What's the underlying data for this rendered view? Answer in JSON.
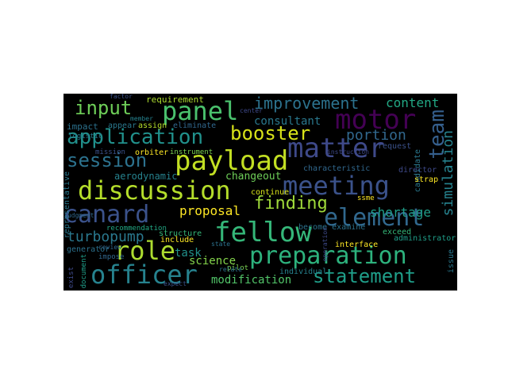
{
  "cloud": {
    "background": "#000000",
    "words": [
      {
        "text": "fellow",
        "color": "#35b779"
      },
      {
        "text": "discussion",
        "color": "#b5de2b"
      },
      {
        "text": "payload",
        "color": "#c2df23"
      },
      {
        "text": "preparation",
        "color": "#2db27d"
      },
      {
        "text": "officer",
        "color": "#26828e"
      },
      {
        "text": "matter",
        "color": "#3e4989"
      },
      {
        "text": "motor",
        "color": "#440154"
      },
      {
        "text": "element",
        "color": "#31688e"
      },
      {
        "text": "meeting",
        "color": "#3b528b"
      },
      {
        "text": "role",
        "color": "#addc30"
      },
      {
        "text": "canard",
        "color": "#3b528b"
      },
      {
        "text": "panel",
        "color": "#4ac16d"
      },
      {
        "text": "application",
        "color": "#21918c"
      },
      {
        "text": "booster",
        "color": "#d8e219"
      },
      {
        "text": "input",
        "color": "#6ece58"
      },
      {
        "text": "session",
        "color": "#2c728e"
      },
      {
        "text": "statement",
        "color": "#1f9e89"
      },
      {
        "text": "team",
        "color": "#355f8d"
      },
      {
        "text": "finding",
        "color": "#9fda3a"
      },
      {
        "text": "improvement",
        "color": "#2c728e"
      },
      {
        "text": "simulation",
        "color": "#26828e"
      },
      {
        "text": "turbopump",
        "color": "#2a788e"
      },
      {
        "text": "portion",
        "color": "#31688e"
      },
      {
        "text": "shortage",
        "color": "#1f9e89"
      },
      {
        "text": "content",
        "color": "#22a884"
      },
      {
        "text": "proposal",
        "color": "#fde725"
      },
      {
        "text": "modification",
        "color": "#52c569"
      },
      {
        "text": "consultant",
        "color": "#2a788e"
      },
      {
        "text": "science",
        "color": "#84d44b"
      },
      {
        "text": "task",
        "color": "#21918c"
      },
      {
        "text": "changeout",
        "color": "#6ece58"
      },
      {
        "text": "aerodynamic",
        "color": "#26828e"
      },
      {
        "text": "requirement",
        "color": "#addc30"
      },
      {
        "text": "impact",
        "color": "#2c728e"
      },
      {
        "text": "administrator",
        "color": "#1f9e89"
      },
      {
        "text": "characteristic",
        "color": "#31688e"
      },
      {
        "text": "director",
        "color": "#3e4989"
      },
      {
        "text": "candidate",
        "color": "#2a788e"
      },
      {
        "text": "request",
        "color": "#3b528b"
      },
      {
        "text": "interface",
        "color": "#fde725"
      },
      {
        "text": "become examine",
        "color": "#2c728e"
      },
      {
        "text": "continue",
        "color": "#d8e219"
      },
      {
        "text": "individual",
        "color": "#26828e"
      },
      {
        "text": "structure",
        "color": "#35b779"
      },
      {
        "text": "recommendation",
        "color": "#22a884"
      },
      {
        "text": "instruction",
        "color": "#3e4989"
      },
      {
        "text": "instrument",
        "color": "#7ad151"
      },
      {
        "text": "orbiter",
        "color": "#fde725"
      },
      {
        "text": "mission",
        "color": "#3b528b"
      },
      {
        "text": "appear",
        "color": "#2a788e"
      },
      {
        "text": "assign",
        "color": "#b5de2b"
      },
      {
        "text": "eliminate",
        "color": "#31688e"
      },
      {
        "text": "generator",
        "color": "#2c728e"
      },
      {
        "text": "exceed",
        "color": "#35b779"
      },
      {
        "text": "strap",
        "color": "#fde725"
      },
      {
        "text": "issue",
        "color": "#2a788e"
      },
      {
        "text": "include",
        "color": "#fde725"
      },
      {
        "text": "pilot",
        "color": "#7ad151"
      },
      {
        "text": "relate",
        "color": "#2c728e"
      },
      {
        "text": "impose",
        "color": "#31688e"
      },
      {
        "text": "document",
        "color": "#1f9e89"
      },
      {
        "text": "exist",
        "color": "#3e4989"
      },
      {
        "text": "logistic",
        "color": "#2a788e"
      },
      {
        "text": "member",
        "color": "#26828e"
      },
      {
        "text": "factor",
        "color": "#3b528b"
      },
      {
        "text": "review",
        "color": "#31688e"
      },
      {
        "text": "state",
        "color": "#2c728e"
      },
      {
        "text": "ssme",
        "color": "#fde725"
      },
      {
        "text": "center",
        "color": "#3e4989"
      },
      {
        "text": "representative",
        "color": "#2a788e"
      },
      {
        "text": "judgment",
        "color": "#31688e"
      },
      {
        "text": "expect",
        "color": "#3b528b"
      },
      {
        "text": "operation",
        "color": "#3e4989"
      }
    ]
  }
}
